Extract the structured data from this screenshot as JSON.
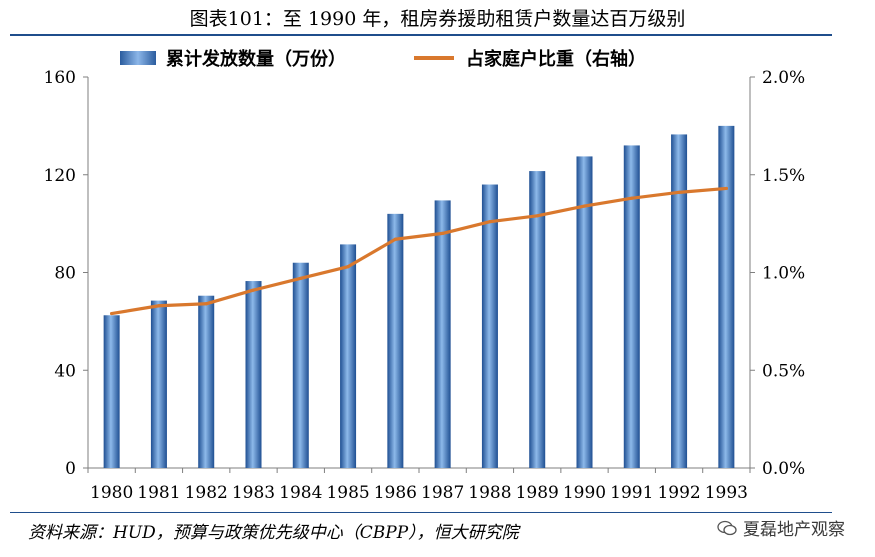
{
  "header": {
    "title": "图表101：至 1990 年，租房券援助租赁户数量达百万级别"
  },
  "legend": {
    "bar_label": "累计发放数量（万份）",
    "line_label": "占家庭户比重（右轴）"
  },
  "footer": {
    "source": "资料来源：HUD，预算与政策优先级中心（CBPP），恒大研究院",
    "watermark": "夏磊地产观察"
  },
  "colors": {
    "bar": "#3a6fb5",
    "line": "#d9782d",
    "rule": "#1f4e8c"
  },
  "chart_data": {
    "type": "bar",
    "title": "图表101：至 1990 年，租房券援助租赁户数量达百万级别",
    "categories": [
      "1980",
      "1981",
      "1982",
      "1983",
      "1984",
      "1985",
      "1986",
      "1987",
      "1988",
      "1989",
      "1990",
      "1991",
      "1992",
      "1993"
    ],
    "series": [
      {
        "name": "累计发放数量（万份）",
        "type": "bar",
        "axis": "left",
        "values": [
          62.5,
          68.5,
          70.5,
          76.5,
          84,
          91.5,
          104,
          109.5,
          116,
          121.5,
          127.5,
          132,
          136.5,
          140
        ]
      },
      {
        "name": "占家庭户比重（右轴）",
        "type": "line",
        "axis": "right",
        "values": [
          0.79,
          0.83,
          0.84,
          0.91,
          0.97,
          1.03,
          1.17,
          1.2,
          1.26,
          1.29,
          1.34,
          1.38,
          1.41,
          1.43
        ]
      }
    ],
    "y_left": {
      "range": [
        0,
        160
      ],
      "ticks": [
        "0",
        "40",
        "80",
        "120",
        "160"
      ]
    },
    "y_right": {
      "range": [
        0,
        2.0
      ],
      "ticks": [
        "0.0%",
        "0.5%",
        "1.0%",
        "1.5%",
        "2.0%"
      ]
    },
    "legend_placement": "top",
    "grid": false
  }
}
